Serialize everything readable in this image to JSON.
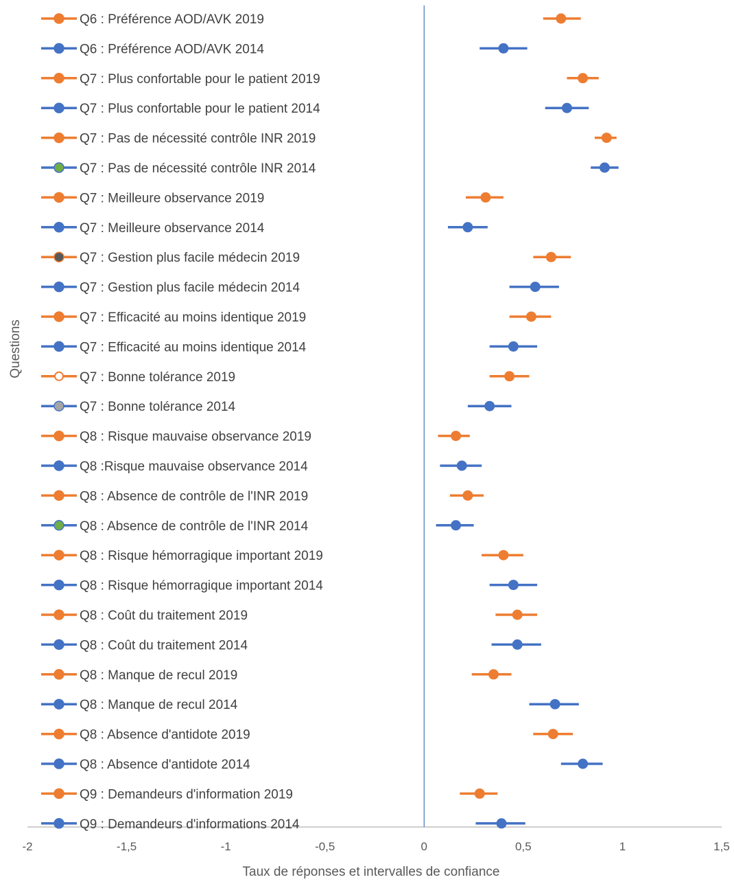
{
  "chart_data": {
    "type": "scatter",
    "title": "",
    "xlabel": "Taux de réponses et intervalles de confiance",
    "ylabel": "Questions",
    "xlim": [
      -2,
      1.5
    ],
    "xticks": [
      "-2",
      "-1,5",
      "-1",
      "-0,5",
      "0",
      "0,5",
      "1",
      "1,5"
    ],
    "error_bars": "horizontal confidence intervals",
    "colors": {
      "2019": "#ED7D31",
      "2014": "#4472C4",
      "vertical_line": "#4472C4",
      "axis": "#BFBFBF"
    },
    "series": [
      {
        "name": "Q6 : Préférence AOD/AVK 2019",
        "color": "#ED7D31",
        "marker": "#ED7D31",
        "value": 0.69,
        "ci": [
          0.6,
          0.79
        ]
      },
      {
        "name": "Q6 : Préférence AOD/AVK 2014",
        "color": "#4472C4",
        "marker": "#4472C4",
        "value": 0.4,
        "ci": [
          0.28,
          0.52
        ]
      },
      {
        "name": "Q7 :  Plus confortable pour le patient 2019",
        "color": "#ED7D31",
        "marker": "#ED7D31",
        "value": 0.8,
        "ci": [
          0.72,
          0.88
        ]
      },
      {
        "name": "Q7 :  Plus confortable pour le patient 2014",
        "color": "#4472C4",
        "marker": "#4472C4",
        "value": 0.72,
        "ci": [
          0.61,
          0.83
        ]
      },
      {
        "name": "Q7 : Pas de nécessité contrôle INR 2019",
        "color": "#ED7D31",
        "marker": "#ED7D31",
        "value": 0.92,
        "ci": [
          0.86,
          0.97
        ]
      },
      {
        "name": "Q7 : Pas de nécessité contrôle INR 2014",
        "color": "#4472C4",
        "marker": "#70AD47",
        "value": 0.91,
        "ci": [
          0.84,
          0.98
        ]
      },
      {
        "name": "Q7 : Meilleure observance 2019",
        "color": "#ED7D31",
        "marker": "#ED7D31",
        "value": 0.31,
        "ci": [
          0.21,
          0.4
        ]
      },
      {
        "name": "Q7 : Meilleure observance 2014",
        "color": "#4472C4",
        "marker": "#4472C4",
        "value": 0.22,
        "ci": [
          0.12,
          0.32
        ]
      },
      {
        "name": "Q7 :  Gestion plus facile médecin 2019",
        "color": "#ED7D31",
        "marker": "#595959",
        "value": 0.64,
        "ci": [
          0.55,
          0.74
        ]
      },
      {
        "name": "Q7 : Gestion plus facile médecin 2014",
        "color": "#4472C4",
        "marker": "#4472C4",
        "value": 0.56,
        "ci": [
          0.43,
          0.68
        ]
      },
      {
        "name": "Q7 : Efficacité au moins identique 2019",
        "color": "#ED7D31",
        "marker": "#ED7D31",
        "value": 0.54,
        "ci": [
          0.43,
          0.64
        ]
      },
      {
        "name": "Q7 : Efficacité au moins identique 2014",
        "color": "#4472C4",
        "marker": "#4472C4",
        "value": 0.45,
        "ci": [
          0.33,
          0.57
        ]
      },
      {
        "name": "Q7 : Bonne tolérance 2019",
        "color": "#ED7D31",
        "marker": "hollow",
        "value": 0.43,
        "ci": [
          0.33,
          0.53
        ]
      },
      {
        "name": "Q7 : Bonne tolérance 2014",
        "color": "#4472C4",
        "marker": "#A5A5A5",
        "value": 0.33,
        "ci": [
          0.22,
          0.44
        ]
      },
      {
        "name": "Q8 : Risque mauvaise observance 2019",
        "color": "#ED7D31",
        "marker": "#ED7D31",
        "value": 0.16,
        "ci": [
          0.07,
          0.23
        ]
      },
      {
        "name": "Q8 :Risque mauvaise observance 2014",
        "color": "#4472C4",
        "marker": "#4472C4",
        "value": 0.19,
        "ci": [
          0.08,
          0.29
        ]
      },
      {
        "name": "Q8 : Absence de contrôle de l'INR 2019",
        "color": "#ED7D31",
        "marker": "#ED7D31",
        "value": 0.22,
        "ci": [
          0.13,
          0.3
        ]
      },
      {
        "name": "Q8 : Absence de contrôle de l'INR 2014",
        "color": "#4472C4",
        "marker": "#70AD47",
        "value": 0.16,
        "ci": [
          0.06,
          0.25
        ]
      },
      {
        "name": "Q8 : Risque hémorragique important 2019",
        "color": "#ED7D31",
        "marker": "#ED7D31",
        "value": 0.4,
        "ci": [
          0.29,
          0.5
        ]
      },
      {
        "name": "Q8 : Risque hémorragique important 2014",
        "color": "#4472C4",
        "marker": "#4472C4",
        "value": 0.45,
        "ci": [
          0.33,
          0.57
        ]
      },
      {
        "name": "Q8 : Coût du traitement 2019",
        "color": "#ED7D31",
        "marker": "#ED7D31",
        "value": 0.47,
        "ci": [
          0.36,
          0.57
        ]
      },
      {
        "name": "Q8 : Coût du traitement 2014",
        "color": "#4472C4",
        "marker": "#4472C4",
        "value": 0.47,
        "ci": [
          0.34,
          0.59
        ]
      },
      {
        "name": "Q8 : Manque de recul 2019",
        "color": "#ED7D31",
        "marker": "#ED7D31",
        "value": 0.35,
        "ci": [
          0.24,
          0.44
        ]
      },
      {
        "name": "Q8 : Manque de recul 2014",
        "color": "#4472C4",
        "marker": "#4472C4",
        "value": 0.66,
        "ci": [
          0.53,
          0.78
        ]
      },
      {
        "name": "Q8 : Absence d'antidote 2019",
        "color": "#ED7D31",
        "marker": "#ED7D31",
        "value": 0.65,
        "ci": [
          0.55,
          0.75
        ]
      },
      {
        "name": "Q8 : Absence d'antidote 2014",
        "color": "#4472C4",
        "marker": "#4472C4",
        "value": 0.8,
        "ci": [
          0.69,
          0.9
        ]
      },
      {
        "name": "Q9 : Demandeurs d'information 2019",
        "color": "#ED7D31",
        "marker": "#ED7D31",
        "value": 0.28,
        "ci": [
          0.18,
          0.37
        ]
      },
      {
        "name": "Q9 : Demandeurs d'informations 2014",
        "color": "#4472C4",
        "marker": "#4472C4",
        "value": 0.39,
        "ci": [
          0.26,
          0.51
        ]
      }
    ]
  }
}
